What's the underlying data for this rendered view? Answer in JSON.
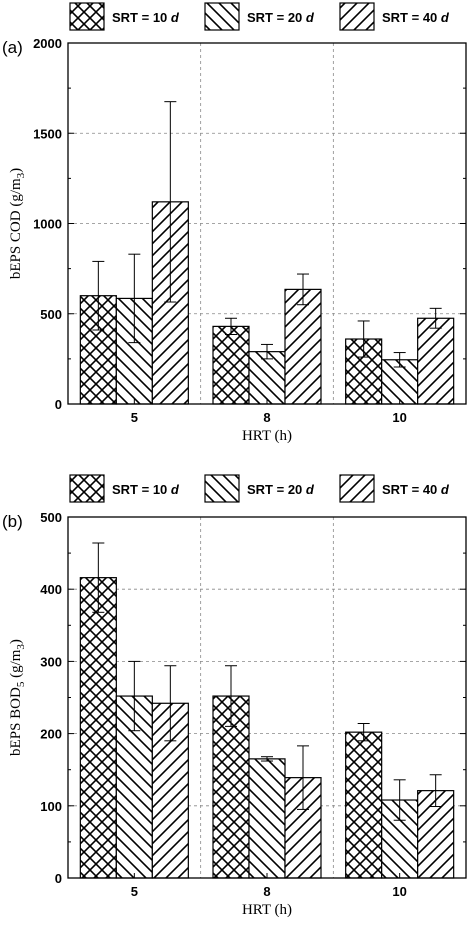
{
  "chart_data": [
    {
      "type": "bar",
      "panel_label": "(a)",
      "ylabel_main": "bEPS COD (g/m",
      "ylabel_sub": "3",
      "ylabel_end": ")",
      "xlabel": "HRT (h)",
      "categories": [
        "5",
        "8",
        "10"
      ],
      "ylim": [
        0,
        2000
      ],
      "yticks": [
        "0",
        "500",
        "1000",
        "1500",
        "2000"
      ],
      "grid": true,
      "legend_position": "top",
      "series": [
        {
          "name_prefix": "SRT = 10 ",
          "name_unit": "d",
          "pattern": "crosshatch",
          "values": [
            600,
            430,
            360
          ],
          "errors": [
            190,
            45,
            100
          ]
        },
        {
          "name_prefix": "SRT = 20 ",
          "name_unit": "d",
          "pattern": "backslash",
          "values": [
            585,
            290,
            245
          ],
          "errors": [
            245,
            40,
            40
          ]
        },
        {
          "name_prefix": "SRT = 40 ",
          "name_unit": "d",
          "pattern": "slash",
          "values": [
            1120,
            635,
            475
          ],
          "errors": [
            555,
            85,
            55
          ]
        }
      ]
    },
    {
      "type": "bar",
      "panel_label": "(b)",
      "ylabel_main": "bEPS BOD",
      "ylabel_sub": "5",
      "ylabel_end": " (g/m",
      "ylabel_sub2": "3",
      "ylabel_end2": ")",
      "xlabel": "HRT (h)",
      "categories": [
        "5",
        "8",
        "10"
      ],
      "ylim": [
        0,
        500
      ],
      "yticks": [
        "0",
        "100",
        "200",
        "300",
        "400",
        "500"
      ],
      "grid": true,
      "legend_position": "top",
      "series": [
        {
          "name_prefix": "SRT = 10 ",
          "name_unit": "d",
          "pattern": "crosshatch",
          "values": [
            416,
            252,
            202
          ],
          "errors": [
            48,
            42,
            12
          ]
        },
        {
          "name_prefix": "SRT = 20 ",
          "name_unit": "d",
          "pattern": "backslash",
          "values": [
            252,
            165,
            108
          ],
          "errors": [
            48,
            3,
            28
          ]
        },
        {
          "name_prefix": "SRT = 40 ",
          "name_unit": "d",
          "pattern": "slash",
          "values": [
            242,
            139,
            121
          ],
          "errors": [
            52,
            44,
            22
          ]
        }
      ]
    }
  ]
}
